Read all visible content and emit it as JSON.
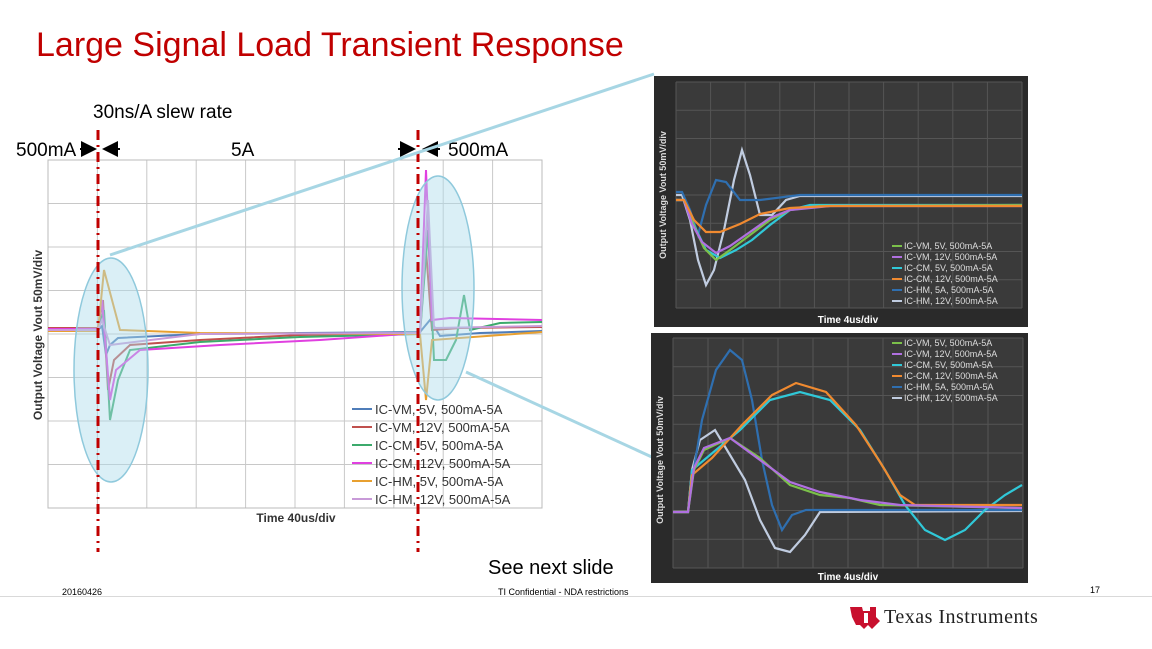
{
  "slide": {
    "title": "Large Signal Load Transient Response",
    "slew_rate": "30ns/A slew rate",
    "label_500ma_left": "500mA",
    "label_5a": "5A",
    "label_500ma_right": "500mA",
    "see_next": "See next slide",
    "date": "20160426",
    "confidential": "TI Confidential - NDA restrictions",
    "page_number": "17",
    "company_name": "Texas Instruments"
  },
  "chart_data": [
    {
      "type": "line",
      "title": "",
      "xlabel": "Time  40us/div",
      "ylabel": "Output Voltage  Vout  50mV/div",
      "grid": true,
      "series": [
        {
          "name": "IC-VM, 5V, 500mA-5A",
          "color": "#4f7db9"
        },
        {
          "name": "IC-VM, 12V, 500mA-5A",
          "color": "#c0504d"
        },
        {
          "name": "IC-CM, 5V, 500mA-5A",
          "color": "#3caa6c"
        },
        {
          "name": "IC-CM, 12V, 500mA-5A",
          "color": "#e040e0"
        },
        {
          "name": "IC-HM, 5V, 500mA-5A",
          "color": "#e8a030"
        },
        {
          "name": "IC-HM, 12V, 500mA-5A",
          "color": "#c89ad8"
        }
      ]
    },
    {
      "type": "line",
      "title": "",
      "xlabel": "Time  4us/div",
      "ylabel": "Output Voltage  Vout  50mV/div",
      "grid": true,
      "series": [
        {
          "name": "IC-VM, 5V, 500mA-5A",
          "color": "#7bc04a"
        },
        {
          "name": "IC-VM, 12V, 500mA-5A",
          "color": "#b070e0"
        },
        {
          "name": "IC-CM, 5V, 500mA-5A",
          "color": "#30c8d8"
        },
        {
          "name": "IC-CM, 12V, 500mA-5A",
          "color": "#f08a30"
        },
        {
          "name": "IC-HM, 5A, 500mA-5A",
          "color": "#2f6fb0"
        },
        {
          "name": "IC-HM, 12V, 500mA-5A",
          "color": "#c0cce0"
        }
      ]
    },
    {
      "type": "line",
      "title": "",
      "xlabel": "Time  4us/div",
      "ylabel": "Output Voltage  Vout  50mV/div",
      "grid": true,
      "series": [
        {
          "name": "IC-VM, 5V, 500mA-5A",
          "color": "#7bc04a"
        },
        {
          "name": "IC-VM, 12V, 500mA-5A",
          "color": "#b070e0"
        },
        {
          "name": "IC-CM, 5V, 500mA-5A",
          "color": "#30c8d8"
        },
        {
          "name": "IC-CM, 12V, 500mA-5A",
          "color": "#f08a30"
        },
        {
          "name": "IC-HM, 5A, 500mA-5A",
          "color": "#2f6fb0"
        },
        {
          "name": "IC-HM, 12V, 500mA-5A",
          "color": "#c0cce0"
        }
      ]
    }
  ]
}
